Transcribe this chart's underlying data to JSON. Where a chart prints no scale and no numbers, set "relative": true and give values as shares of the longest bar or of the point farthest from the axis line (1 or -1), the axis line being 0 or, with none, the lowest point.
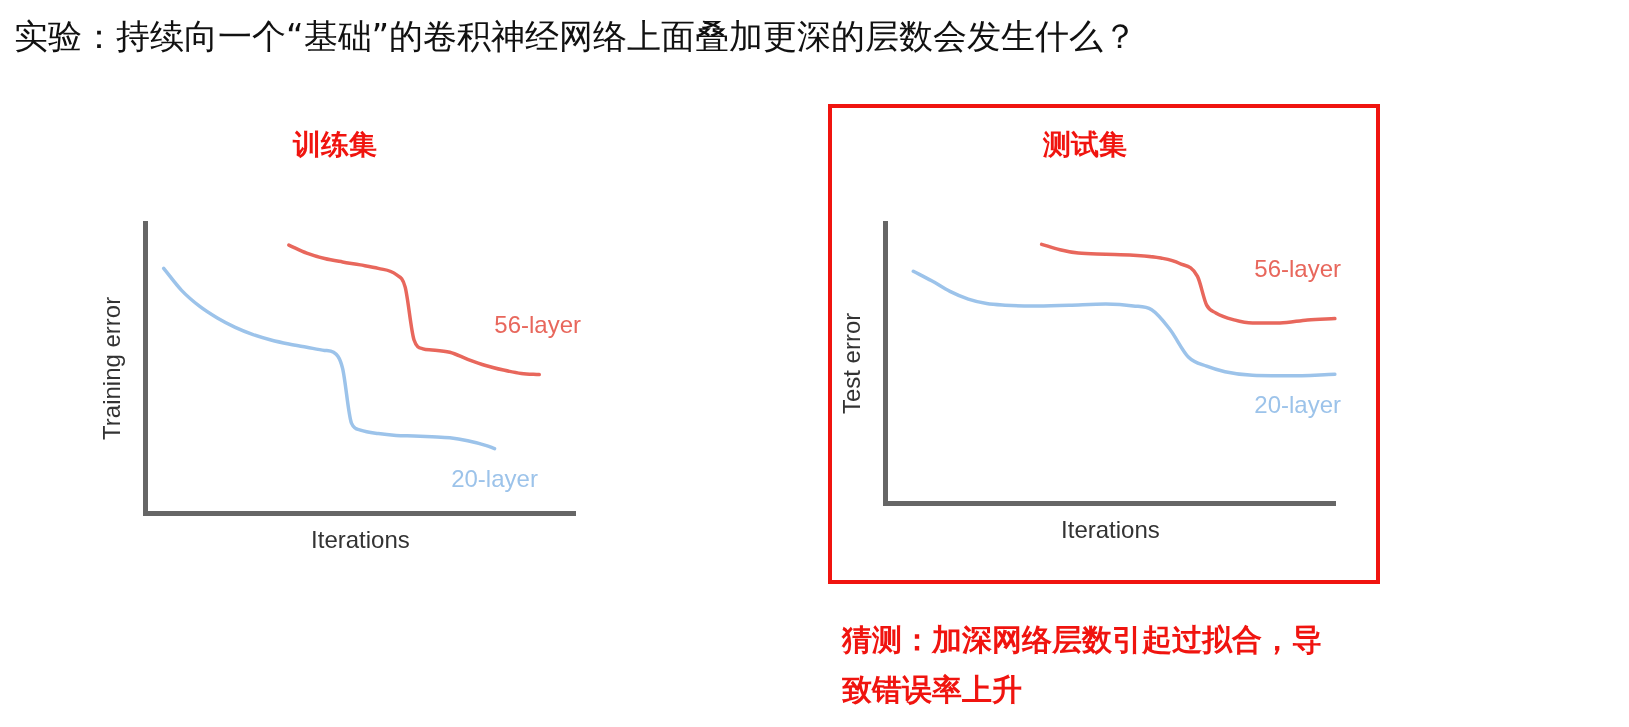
{
  "chart_data": [
    {
      "type": "line",
      "title": "训练集",
      "xlabel": "Iterations",
      "ylabel": "Training error",
      "relative": true,
      "legend": false,
      "annotations": [
        "实验：持续向一个“基础”的卷积神经网络上面叠加更深的层数会发生什么？"
      ],
      "categories": [
        null,
        null,
        null,
        null,
        null,
        null,
        null,
        null,
        null,
        null,
        null,
        null,
        null,
        null,
        null,
        null,
        null,
        null,
        null,
        null,
        null,
        null,
        null,
        null,
        null,
        null,
        null,
        null,
        null,
        null,
        null,
        null,
        null,
        null,
        null,
        null,
        null,
        null,
        null,
        null,
        null,
        null,
        null,
        null,
        null,
        null,
        null,
        null,
        null
      ],
      "series": [
        {
          "name": "56-layer",
          "color": "#e8675c",
          "values": [
            null,
            null,
            null,
            null,
            null,
            null,
            null,
            null,
            null,
            null,
            null,
            null,
            null,
            null,
            null,
            null,
            1.0,
            null,
            0.97,
            null,
            0.95,
            null,
            0.937,
            null,
            0.926,
            null,
            0.913,
            null,
            0.89,
            0.844,
            0.646,
            0.613,
            0.609,
            null,
            0.6,
            null,
            0.574,
            null,
            0.551,
            null,
            0.534,
            null,
            0.521,
            null,
            0.517,
            null,
            null,
            null,
            null
          ]
        },
        {
          "name": "20-layer",
          "color": "#9cc3ea",
          "values": [
            null,
            null,
            0.913,
            null,
            0.831,
            null,
            0.772,
            null,
            0.728,
            null,
            0.693,
            null,
            0.666,
            null,
            0.646,
            null,
            0.631,
            null,
            0.619,
            null,
            0.607,
            0.6,
            0.541,
            0.336,
            0.31,
            null,
            0.297,
            null,
            0.29,
            null,
            0.288,
            null,
            0.285,
            null,
            0.281,
            null,
            0.27,
            null,
            0.253,
            0.241,
            null,
            null,
            null,
            null,
            null,
            null,
            null,
            null,
            null
          ]
        }
      ]
    },
    {
      "type": "line",
      "title": "测试集",
      "xlabel": "Iterations",
      "ylabel": "Test error",
      "relative": true,
      "legend": false,
      "annotations": [
        "猜测：加深网络层数引起过拟合，导致错误率上升"
      ],
      "categories": [
        null,
        null,
        null,
        null,
        null,
        null,
        null,
        null,
        null,
        null,
        null,
        null,
        null,
        null,
        null,
        null,
        null,
        null,
        null,
        null,
        null,
        null,
        null,
        null,
        null,
        null,
        null,
        null,
        null,
        null,
        null,
        null,
        null,
        null,
        null,
        null,
        null,
        null,
        null,
        null,
        null,
        null,
        null,
        null,
        null,
        null,
        null,
        null,
        null,
        null
      ],
      "series": [
        {
          "name": "56-layer",
          "color": "#e8675c",
          "values": [
            null,
            null,
            null,
            null,
            null,
            null,
            null,
            null,
            null,
            null,
            null,
            null,
            null,
            null,
            null,
            null,
            null,
            1.0,
            null,
            0.979,
            null,
            0.966,
            null,
            null,
            0.962,
            null,
            null,
            0.958,
            null,
            null,
            0.947,
            null,
            0.927,
            null,
            0.876,
            0.765,
            0.735,
            null,
            0.708,
            null,
            0.696,
            null,
            null,
            0.696,
            null,
            null,
            0.708,
            null,
            null,
            0.713
          ]
        },
        {
          "name": "20-layer",
          "color": "#9cc3ea",
          "values": [
            null,
            null,
            null,
            0.896,
            null,
            0.859,
            null,
            0.818,
            null,
            0.788,
            null,
            0.771,
            null,
            0.765,
            null,
            null,
            0.762,
            null,
            null,
            null,
            0.765,
            null,
            null,
            null,
            0.769,
            null,
            null,
            0.762,
            null,
            0.747,
            null,
            0.671,
            null,
            0.565,
            null,
            0.529,
            null,
            0.508,
            null,
            null,
            0.494,
            null,
            null,
            null,
            0.492,
            null,
            null,
            null,
            null,
            0.498
          ]
        }
      ]
    }
  ]
}
